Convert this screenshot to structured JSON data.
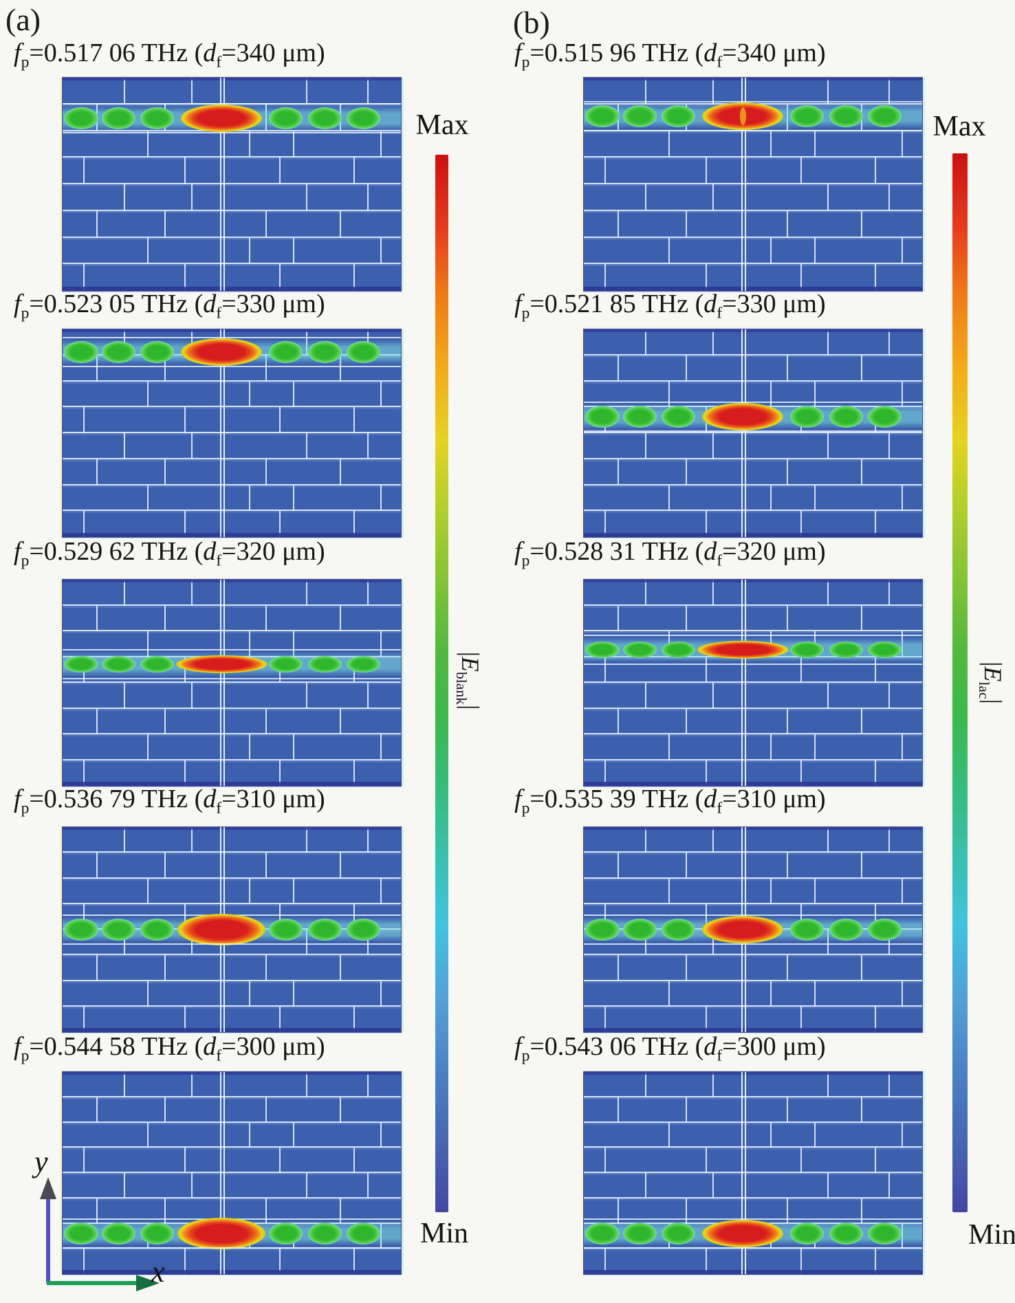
{
  "figure": {
    "label_a": "(a)",
    "label_b": "(b)",
    "title_parts": {
      "f": "f",
      "p_sub": "p",
      "eq1": "=",
      "unit1": " THz (",
      "d": "d",
      "f_sub": "f",
      "eq2": "=",
      "unit2": " μm)"
    },
    "columns": [
      {
        "id": "a",
        "field_label": {
          "open": "|",
          "symbol": "E",
          "subscript": "blank",
          "close": "|"
        },
        "panels": [
          {
            "fp": "0.517 06",
            "df": "340",
            "band_pos": 0.19,
            "blob": "wide"
          },
          {
            "fp": "0.523 05",
            "df": "330",
            "band_pos": 0.11,
            "blob": "wide"
          },
          {
            "fp": "0.529 62",
            "df": "320",
            "band_pos": 0.41,
            "blob": "thin"
          },
          {
            "fp": "0.536 79",
            "df": "310",
            "band_pos": 0.5,
            "blob": "fat"
          },
          {
            "fp": "0.544 58",
            "df": "300",
            "band_pos": 0.8,
            "blob": "fat"
          }
        ]
      },
      {
        "id": "b",
        "field_label": {
          "open": "|",
          "symbol": "E",
          "subscript": "lac",
          "close": "|"
        },
        "panels": [
          {
            "fp": "0.515 96",
            "df": "340",
            "band_pos": 0.18,
            "blob": "split"
          },
          {
            "fp": "0.521 85",
            "df": "330",
            "band_pos": 0.42,
            "blob": "wide"
          },
          {
            "fp": "0.528 31",
            "df": "320",
            "band_pos": 0.34,
            "blob": "thin"
          },
          {
            "fp": "0.535 39",
            "df": "310",
            "band_pos": 0.5,
            "blob": "wide"
          },
          {
            "fp": "0.543 06",
            "df": "300",
            "band_pos": 0.8,
            "blob": "wide"
          }
        ]
      }
    ],
    "colorbar": {
      "max": "Max",
      "min": "Min",
      "gradient": [
        "#cc1111",
        "#e63b1e",
        "#ef7817",
        "#f2aa1a",
        "#e6d321",
        "#b5cf2c",
        "#84c436",
        "#52b83f",
        "#3cb84b",
        "#36bc7c",
        "#3ac0b4",
        "#41c2e0",
        "#539fd6",
        "#4a80c2",
        "#4768b2",
        "#4347a2"
      ]
    },
    "axes": {
      "x": "x",
      "y": "y"
    },
    "colors": {
      "panel_blue": "#3c5fae",
      "brick_line": "#e4effd",
      "band_green": "#2eb62c",
      "band_red": "#d61c1c",
      "band_cyan": "#7adfcf",
      "y_arrow": "#544fc4",
      "x_arrow": "#1f9e58"
    }
  }
}
